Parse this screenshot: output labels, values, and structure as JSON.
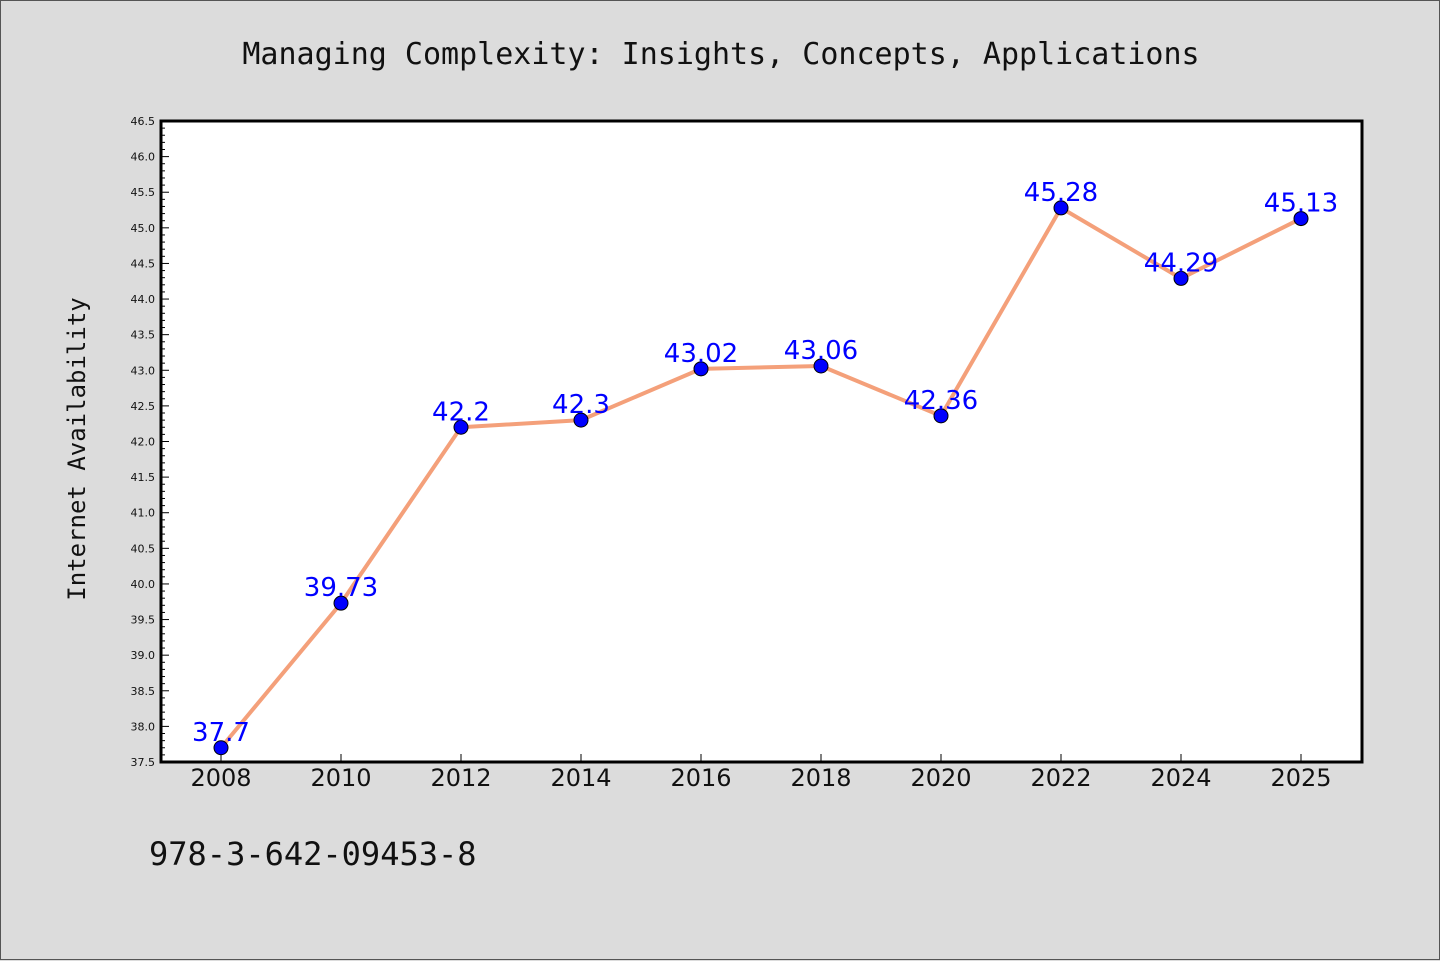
{
  "chart_data": {
    "type": "line",
    "title": "Managing Complexity: Insights, Concepts, Applications",
    "xlabel": "",
    "ylabel": "Internet Availability",
    "x": [
      "2008",
      "2010",
      "2012",
      "2014",
      "2016",
      "2018",
      "2020",
      "2022",
      "2024",
      "2025"
    ],
    "series": [
      {
        "values": [
          37.7,
          39.73,
          42.2,
          42.3,
          43.02,
          43.06,
          42.36,
          45.28,
          44.29,
          45.13
        ],
        "labels": [
          "37.7",
          "39.73",
          "42.2",
          "42.3",
          "43.02",
          "43.06",
          "42.36",
          "45.28",
          "44.29",
          "45.13"
        ],
        "line_color": "#f4a07a",
        "marker_color": "#0000ff",
        "label_color": "#0000ff"
      }
    ],
    "ylim": [
      37.5,
      46.5
    ],
    "yticks": [
      "37.5",
      "38.0",
      "38.5",
      "39.0",
      "39.5",
      "40.0",
      "40.5",
      "41.0",
      "41.5",
      "42.0",
      "42.5",
      "43.0",
      "43.5",
      "44.0",
      "44.5",
      "45.0",
      "45.5",
      "46.0",
      "46.5"
    ],
    "grid": false,
    "legend": "none"
  },
  "footer": {
    "isbn": "978-3-642-09453-8"
  },
  "colors": {
    "background": "#dcdcdc",
    "plot_background": "#ffffff",
    "axis": "#000000"
  }
}
